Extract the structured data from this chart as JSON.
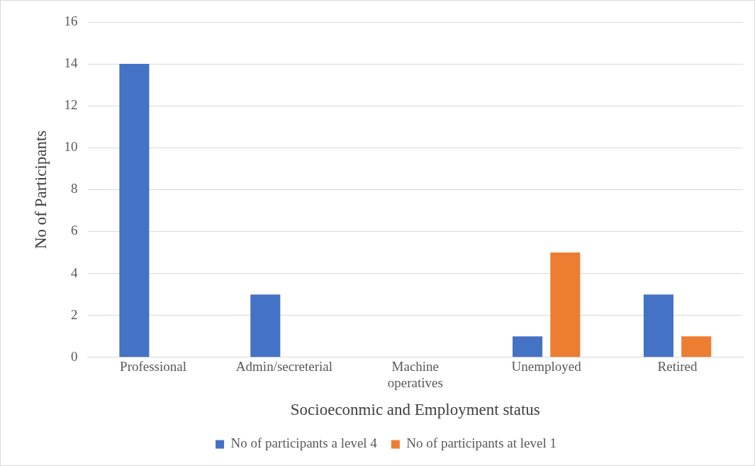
{
  "chart_data": {
    "type": "bar",
    "xlabel": "Socioeconmic and Employment status",
    "ylabel": "No of Participants",
    "categories": [
      "Professional",
      "Admin/secreterial",
      "Machine operatives",
      "Unemployed",
      "Retired"
    ],
    "series": [
      {
        "name": "No of participants a level 4",
        "color": "#4472c4",
        "values": [
          14,
          3,
          0,
          1,
          3
        ]
      },
      {
        "name": "No of participants at level 1",
        "color": "#ed7d31",
        "values": [
          0,
          0,
          0,
          5,
          1
        ]
      }
    ],
    "ylim": [
      0,
      16
    ],
    "yticks": [
      0,
      2,
      4,
      6,
      8,
      10,
      12,
      14,
      16
    ],
    "grid": "y",
    "legend": "bottom"
  }
}
